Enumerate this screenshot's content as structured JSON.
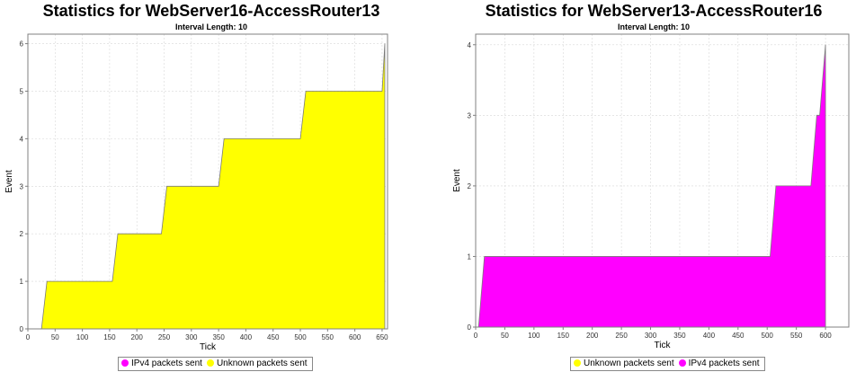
{
  "chart_data": [
    {
      "type": "area",
      "title": "Statistics for WebServer16-AccessRouter13",
      "subtitle": "Interval Length: 10",
      "xlabel": "Tick",
      "ylabel": "Event",
      "xlim": [
        0,
        660
      ],
      "ylim": [
        0,
        6.2
      ],
      "xticks": [
        0,
        50,
        100,
        150,
        200,
        250,
        300,
        350,
        400,
        450,
        500,
        550,
        600,
        650
      ],
      "yticks": [
        0,
        1,
        2,
        3,
        4,
        5,
        6
      ],
      "grid": true,
      "legend_position": "bottom",
      "legend": [
        {
          "name": "IPv4 packets sent",
          "color": "#ff00ff"
        },
        {
          "name": "Unknown packets sent",
          "color": "#ffff00"
        }
      ],
      "series": [
        {
          "name": "Unknown packets sent",
          "color": "#ffff00",
          "x": [
            25,
            35,
            155,
            165,
            245,
            255,
            350,
            360,
            500,
            510,
            650,
            655
          ],
          "y": [
            0,
            1,
            1,
            2,
            2,
            3,
            3,
            4,
            4,
            5,
            5,
            6
          ]
        }
      ]
    },
    {
      "type": "area",
      "title": "Statistics for WebServer13-AccessRouter16",
      "subtitle": "Interval Length: 10",
      "xlabel": "Tick",
      "ylabel": "Event",
      "xlim": [
        0,
        640
      ],
      "ylim": [
        0,
        4.15
      ],
      "xticks": [
        0,
        50,
        100,
        150,
        200,
        250,
        300,
        350,
        400,
        450,
        500,
        550,
        600
      ],
      "yticks": [
        0,
        1,
        2,
        3,
        4
      ],
      "grid": true,
      "legend_position": "bottom",
      "legend": [
        {
          "name": "Unknown packets sent",
          "color": "#ffff00"
        },
        {
          "name": "IPv4 packets sent",
          "color": "#ff00ff"
        }
      ],
      "series": [
        {
          "name": "IPv4 packets sent",
          "color": "#ff00ff",
          "x": [
            5,
            15,
            505,
            515,
            575,
            585,
            590,
            600
          ],
          "y": [
            0,
            1,
            1,
            2,
            2,
            3,
            3,
            4
          ]
        }
      ]
    }
  ]
}
